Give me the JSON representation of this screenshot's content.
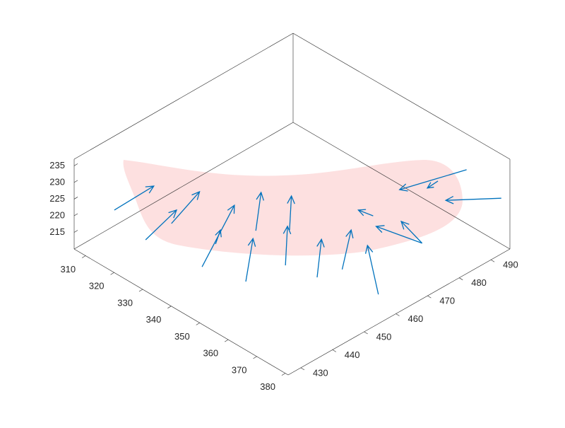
{
  "chart_data": {
    "type": "quiver3",
    "color": "#0072bd",
    "x": [
      311.2,
      325.6,
      325.1,
      343.5,
      338.9,
      341.8,
      355.5,
      357.4,
      347.4,
      366.5,
      368.4,
      382.2,
      357.5,
      374.2,
      374.2,
      359.6,
      374.2,
      358.1
    ],
    "y": [
      434.0,
      430.9,
      439.5,
      432.6,
      441.0,
      451.1,
      435.6,
      446.4,
      456.7,
      448.2,
      454.4,
      453.4,
      474.0,
      474.4,
      474.4,
      501.6,
      499.4,
      493.9
    ],
    "z": [
      220,
      220,
      220,
      220,
      220,
      220,
      220,
      220,
      220,
      220,
      220,
      220,
      220,
      220,
      220,
      220,
      220,
      220
    ],
    "u": [
      -0.5,
      -3.7,
      -4.8,
      -13.1,
      -3.4,
      -10.7,
      -11.8,
      -11.5,
      -10.0,
      -10.8,
      -10.4,
      -16.7,
      -4.3,
      -13.0,
      -10.2,
      -5.5,
      -8.9,
      0.3
    ],
    "v": [
      12.9,
      13.1,
      13.2,
      22.0,
      4.6,
      11.3,
      12.9,
      11.0,
      9.6,
      11.1,
      12.2,
      11.6,
      -0.8,
      -2.8,
      2.6,
      -16.2,
      -9.5,
      -3.6
    ],
    "w": [
      0,
      0,
      0,
      0,
      0,
      0,
      0,
      0,
      0,
      0,
      0,
      0,
      0,
      0,
      0,
      0,
      0,
      0
    ],
    "xlim": [
      306,
      381
    ],
    "ylim": [
      426,
      496
    ],
    "zlim": [
      210,
      237
    ],
    "xticks": [
      310,
      320,
      330,
      340,
      350,
      360,
      370,
      380
    ],
    "yticks": [
      430,
      440,
      450,
      460,
      470,
      480,
      490
    ],
    "zticks": [
      215,
      220,
      225,
      230,
      235
    ]
  }
}
